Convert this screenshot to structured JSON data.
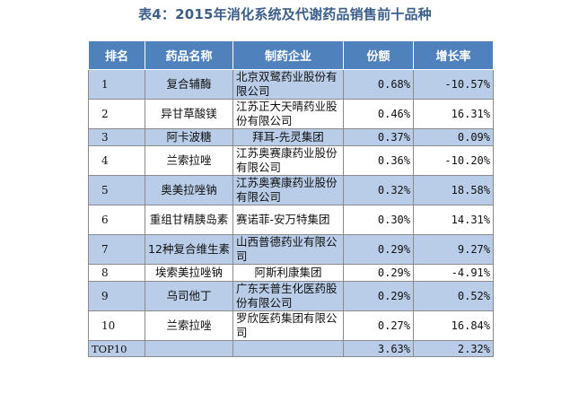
{
  "title": "表4：2015年消化系统及代谢药品销售前十品种",
  "table": {
    "headers": [
      "排名",
      "药品名称",
      "制药企业",
      "份额",
      "增长率"
    ],
    "rows": [
      {
        "rank": "1",
        "drug": "复合辅酶",
        "company": "北京双鹭药业股份有限公司",
        "share": "0.68%",
        "growth": "-10.57%"
      },
      {
        "rank": "2",
        "drug": "异甘草酸镁",
        "company": "江苏正大天晴药业股份有限公司",
        "share": "0.46%",
        "growth": "16.31%"
      },
      {
        "rank": "3",
        "drug": "阿卡波糖",
        "company": "拜耳-先灵集团",
        "share": "0.37%",
        "growth": "0.09%"
      },
      {
        "rank": "4",
        "drug": "兰索拉唑",
        "company": "江苏奥赛康药业股份有限公司",
        "share": "0.36%",
        "growth": "-10.20%"
      },
      {
        "rank": "5",
        "drug": "奥美拉唑钠",
        "company": "江苏奥赛康药业股份有限公司",
        "share": "0.32%",
        "growth": "18.58%"
      },
      {
        "rank": "6",
        "drug": "重组甘精胰岛素",
        "company": "赛诺菲-安万特集团",
        "share": "0.30%",
        "growth": "14.31%"
      },
      {
        "rank": "7",
        "drug": "12种复合维生素",
        "company": "山西普德药业有限公司",
        "share": "0.29%",
        "growth": "9.27%"
      },
      {
        "rank": "8",
        "drug": "埃索美拉唑钠",
        "company": "阿斯利康集团",
        "share": "0.29%",
        "growth": "-4.91%"
      },
      {
        "rank": "9",
        "drug": "乌司他丁",
        "company": "广东天普生化医药股份有限公司",
        "share": "0.29%",
        "growth": "0.52%"
      },
      {
        "rank": "10",
        "drug": "兰索拉唑",
        "company": "罗欣医药集团有限公司",
        "share": "0.27%",
        "growth": "16.84%"
      }
    ],
    "total": {
      "rank": "TOP10",
      "drug": "",
      "company": "",
      "share": "3.63%",
      "growth": "2.32%"
    }
  }
}
